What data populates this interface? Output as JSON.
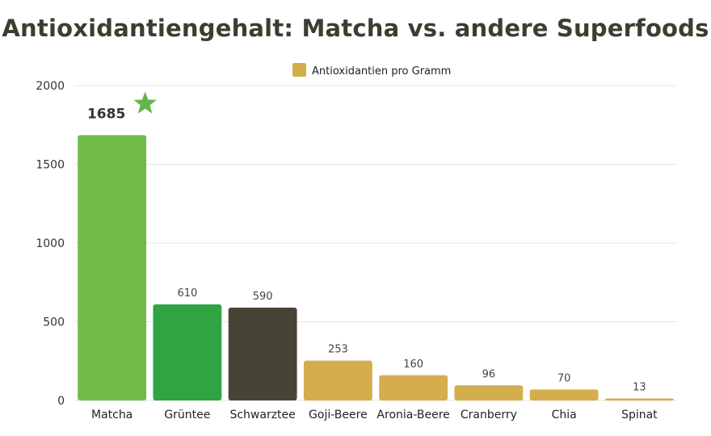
{
  "title": "Antioxidantiengehalt: Matcha vs. andere Superfoods",
  "chart_data": {
    "type": "bar",
    "title": "Antioxidantiengehalt: Matcha vs. andere Superfoods",
    "categories": [
      "Matcha",
      "Grüntee",
      "Schwarztee",
      "Goji-Beere",
      "Aronia-Beere",
      "Cranberry",
      "Chia",
      "Spinat"
    ],
    "series": [
      {
        "name": "Antioxidantien pro Gramm",
        "values": [
          1685,
          610,
          590,
          253,
          160,
          96,
          70,
          13
        ],
        "value_labels": [
          "1685",
          "610",
          "590",
          "253",
          "160",
          "96",
          "70",
          "13"
        ]
      }
    ],
    "bar_colors": [
      "#73bb48",
      "#2ea443",
      "#474436",
      "#d4ad4d",
      "#d4ad4d",
      "#d4ad4d",
      "#d4ad4d",
      "#d4ad4d"
    ],
    "legend_color": "#d4ad4d",
    "highlight_index": 0,
    "highlight_marker": "star",
    "highlight_marker_color": "#62b74a",
    "xlabel": "",
    "ylabel": "",
    "ylim": [
      0,
      2000
    ],
    "yticks": [
      0,
      500,
      1000,
      1500,
      2000
    ],
    "grid": true,
    "legend_position": "top"
  }
}
